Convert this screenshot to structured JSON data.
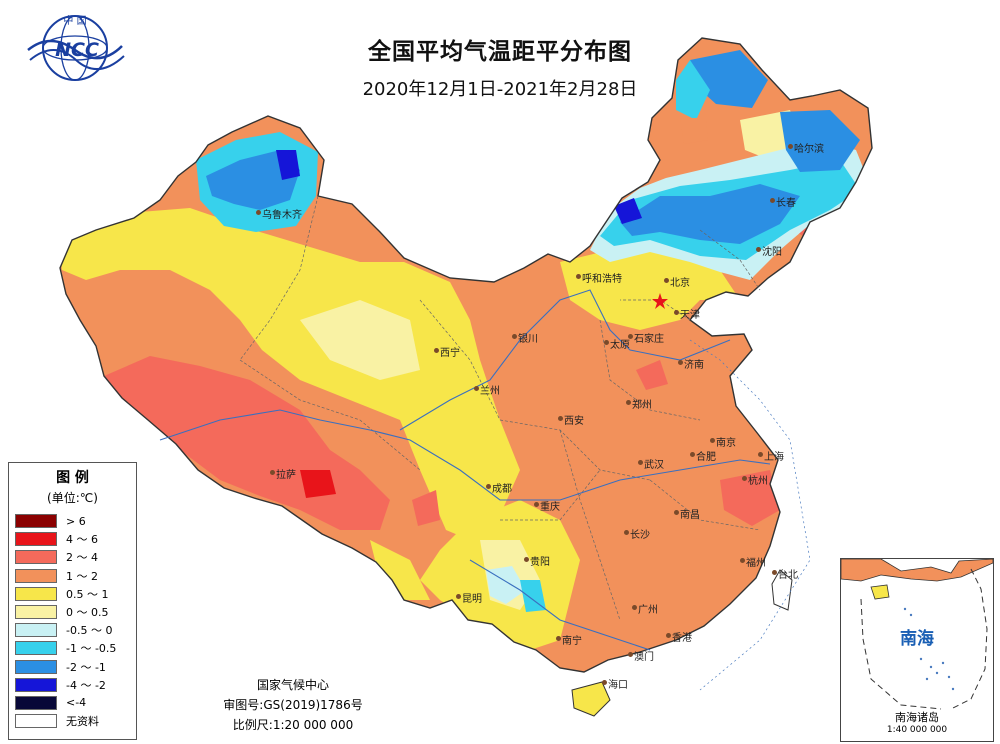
{
  "header": {
    "title": "全国平均气温距平分布图",
    "subtitle": "2020年12月1日-2021年2月28日"
  },
  "logo": {
    "text": "中 国",
    "acronym": "NCC"
  },
  "legend": {
    "title": "图 例",
    "unit": "(单位:℃)",
    "items": [
      {
        "label": "> 6",
        "color": "#8b0000"
      },
      {
        "label": "4 ～ 6",
        "color": "#e8141a"
      },
      {
        "label": "2 ～ 4",
        "color": "#f46a5b"
      },
      {
        "label": "1 ～ 2",
        "color": "#f2915b"
      },
      {
        "label": "0.5 ～ 1",
        "color": "#f7e64a"
      },
      {
        "label": "0 ～ 0.5",
        "color": "#f9f2a4"
      },
      {
        "label": "-0.5 ～ 0",
        "color": "#c9f1f4"
      },
      {
        "label": "-1 ～ -0.5",
        "color": "#37d1ec"
      },
      {
        "label": "-2 ～ -1",
        "color": "#2b8fe3"
      },
      {
        "label": "-4 ～ -2",
        "color": "#1515d8"
      },
      {
        "label": "<-4",
        "color": "#080838"
      },
      {
        "label": "无资料",
        "color": "#ffffff"
      }
    ]
  },
  "credits": {
    "org": "国家气候中心",
    "approval": "审图号:GS(2019)1786号",
    "scale": "比例尺:1:20 000 000"
  },
  "inset": {
    "sea_label": "南海",
    "caption": "南海诸岛",
    "scale": "1:40 000 000"
  },
  "cities": [
    {
      "name": "乌鲁木齐"
    },
    {
      "name": "哈尔滨"
    },
    {
      "name": "长春"
    },
    {
      "name": "沈阳"
    },
    {
      "name": "呼和浩特"
    },
    {
      "name": "北京"
    },
    {
      "name": "天津"
    },
    {
      "name": "石家庄"
    },
    {
      "name": "太原"
    },
    {
      "name": "银川"
    },
    {
      "name": "济南"
    },
    {
      "name": "西宁"
    },
    {
      "name": "兰州"
    },
    {
      "name": "郑州"
    },
    {
      "name": "西安"
    },
    {
      "name": "合肥"
    },
    {
      "name": "南京"
    },
    {
      "name": "上海"
    },
    {
      "name": "拉萨"
    },
    {
      "name": "成都"
    },
    {
      "name": "武汉"
    },
    {
      "name": "杭州"
    },
    {
      "name": "重庆"
    },
    {
      "name": "南昌"
    },
    {
      "name": "长沙"
    },
    {
      "name": "福州"
    },
    {
      "name": "贵阳"
    },
    {
      "name": "台北"
    },
    {
      "name": "昆明"
    },
    {
      "name": "广州"
    },
    {
      "name": "南宁"
    },
    {
      "name": "香港"
    },
    {
      "name": "澳门"
    },
    {
      "name": "海口"
    }
  ],
  "colors": {
    "ocean_line": "#4a7bbf",
    "border": "#333333",
    "river": "#3a6fbf"
  }
}
